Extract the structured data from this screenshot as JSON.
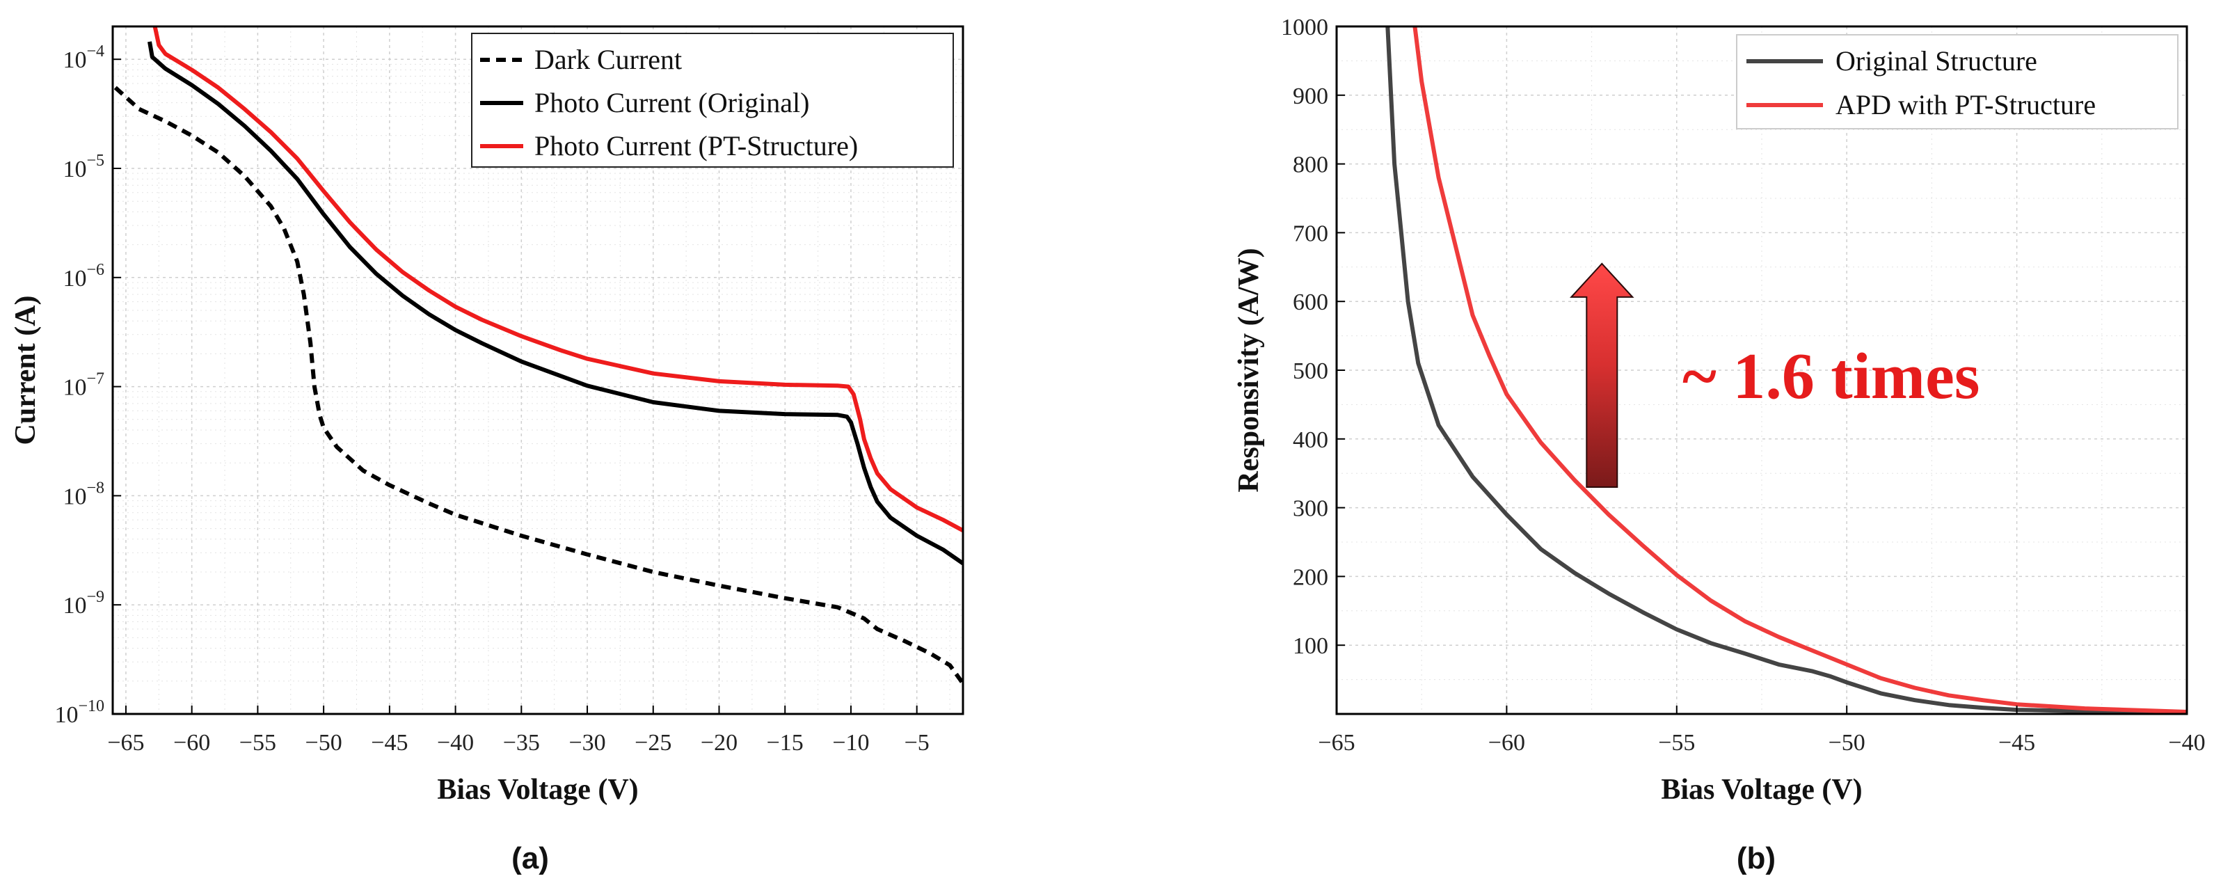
{
  "chart_data": [
    {
      "type": "line",
      "panel_label": "(a)",
      "xlabel": "Bias Voltage (V)",
      "ylabel": "Current (A)",
      "xscale": "linear",
      "yscale": "log",
      "xlim": [
        -66,
        -1.5
      ],
      "ylim": [
        1e-10,
        0.0002
      ],
      "grid": true,
      "legend_position": "top-right",
      "xticks": [
        {
          "value": -65,
          "label": "−65"
        },
        {
          "value": -60,
          "label": "−60"
        },
        {
          "value": -55,
          "label": "−55"
        },
        {
          "value": -50,
          "label": "−50"
        },
        {
          "value": -45,
          "label": "−45"
        },
        {
          "value": -40,
          "label": "−40"
        },
        {
          "value": -35,
          "label": "−35"
        },
        {
          "value": -30,
          "label": "−30"
        },
        {
          "value": -25,
          "label": "−25"
        },
        {
          "value": -20,
          "label": "−20"
        },
        {
          "value": -15,
          "label": "−15"
        },
        {
          "value": -10,
          "label": "−10"
        },
        {
          "value": -5,
          "label": "−5"
        }
      ],
      "yticks": [
        {
          "value": 1e-10,
          "base": "10",
          "exp": "−10"
        },
        {
          "value": 1e-09,
          "base": "10",
          "exp": "−9"
        },
        {
          "value": 1e-08,
          "base": "10",
          "exp": "−8"
        },
        {
          "value": 1e-07,
          "base": "10",
          "exp": "−7"
        },
        {
          "value": 1e-06,
          "base": "10",
          "exp": "−6"
        },
        {
          "value": 1e-05,
          "base": "10",
          "exp": "−5"
        },
        {
          "value": 0.0001,
          "base": "10",
          "exp": "−4"
        }
      ],
      "series": [
        {
          "name": "Dark Current",
          "color": "#000000",
          "dash": "dashed",
          "points": [
            [
              -65.8,
              5.5e-05
            ],
            [
              -64,
              3.5e-05
            ],
            [
              -62,
              2.7e-05
            ],
            [
              -60,
              2e-05
            ],
            [
              -58,
              1.4e-05
            ],
            [
              -56,
              8.5e-06
            ],
            [
              -54,
              4.5e-06
            ],
            [
              -53,
              2.8e-06
            ],
            [
              -52,
              1.4e-06
            ],
            [
              -51.5,
              7e-07
            ],
            [
              -51,
              2.5e-07
            ],
            [
              -50.7,
              1e-07
            ],
            [
              -50.3,
              5.5e-08
            ],
            [
              -50,
              4.2e-08
            ],
            [
              -49,
              2.8e-08
            ],
            [
              -47,
              1.7e-08
            ],
            [
              -45,
              1.25e-08
            ],
            [
              -42,
              8.5e-09
            ],
            [
              -40,
              6.7e-09
            ],
            [
              -35,
              4.3e-09
            ],
            [
              -30,
              2.9e-09
            ],
            [
              -25,
              2e-09
            ],
            [
              -20,
              1.5e-09
            ],
            [
              -15,
              1.15e-09
            ],
            [
              -11,
              9.5e-10
            ],
            [
              -9,
              7.5e-10
            ],
            [
              -8,
              6e-10
            ],
            [
              -6,
              4.7e-10
            ],
            [
              -4,
              3.6e-10
            ],
            [
              -2.5,
              2.8e-10
            ],
            [
              -1.5,
              1.9e-10
            ]
          ]
        },
        {
          "name": "Photo Current (Original)",
          "color": "#000000",
          "dash": "solid",
          "points": [
            [
              -63.2,
              0.000145
            ],
            [
              -63,
              0.000105
            ],
            [
              -62,
              8.2e-05
            ],
            [
              -60,
              5.8e-05
            ],
            [
              -58,
              3.9e-05
            ],
            [
              -56,
              2.45e-05
            ],
            [
              -54,
              1.45e-05
            ],
            [
              -52,
              8e-06
            ],
            [
              -50,
              3.8e-06
            ],
            [
              -48,
              1.9e-06
            ],
            [
              -46,
              1.08e-06
            ],
            [
              -44,
              6.8e-07
            ],
            [
              -42,
              4.6e-07
            ],
            [
              -40,
              3.3e-07
            ],
            [
              -38,
              2.5e-07
            ],
            [
              -35,
              1.7e-07
            ],
            [
              -32,
              1.25e-07
            ],
            [
              -30,
              1.02e-07
            ],
            [
              -25,
              7.2e-08
            ],
            [
              -20,
              6e-08
            ],
            [
              -15,
              5.6e-08
            ],
            [
              -11,
              5.5e-08
            ],
            [
              -10.3,
              5.3e-08
            ],
            [
              -10,
              4.7e-08
            ],
            [
              -9.5,
              3e-08
            ],
            [
              -9,
              1.8e-08
            ],
            [
              -8.5,
              1.2e-08
            ],
            [
              -8,
              8.8e-09
            ],
            [
              -7,
              6.3e-09
            ],
            [
              -5,
              4.3e-09
            ],
            [
              -3,
              3.2e-09
            ],
            [
              -1.5,
              2.4e-09
            ]
          ]
        },
        {
          "name": "Photo Current (PT-Structure)",
          "color": "#ee1c1c",
          "dash": "solid",
          "points": [
            [
              -62.8,
              0.0002
            ],
            [
              -62.5,
              0.000135
            ],
            [
              -62,
              0.000112
            ],
            [
              -60,
              8e-05
            ],
            [
              -58,
              5.5e-05
            ],
            [
              -56,
              3.5e-05
            ],
            [
              -54,
              2.15e-05
            ],
            [
              -52,
              1.23e-05
            ],
            [
              -50,
              6.2e-06
            ],
            [
              -48,
              3.2e-06
            ],
            [
              -46,
              1.8e-06
            ],
            [
              -44,
              1.12e-06
            ],
            [
              -42,
              7.6e-07
            ],
            [
              -40,
              5.4e-07
            ],
            [
              -38,
              4.1e-07
            ],
            [
              -35,
              2.9e-07
            ],
            [
              -32,
              2.15e-07
            ],
            [
              -30,
              1.8e-07
            ],
            [
              -25,
              1.32e-07
            ],
            [
              -20,
              1.12e-07
            ],
            [
              -15,
              1.04e-07
            ],
            [
              -11,
              1.02e-07
            ],
            [
              -10.2,
              1e-07
            ],
            [
              -9.8,
              8.5e-08
            ],
            [
              -9.3,
              5e-08
            ],
            [
              -9,
              3.3e-08
            ],
            [
              -8.5,
              2.2e-08
            ],
            [
              -8,
              1.6e-08
            ],
            [
              -7,
              1.15e-08
            ],
            [
              -5,
              7.8e-09
            ],
            [
              -3,
              6e-09
            ],
            [
              -1.5,
              4.8e-09
            ]
          ]
        }
      ]
    },
    {
      "type": "line",
      "panel_label": "(b)",
      "xlabel": "Bias Voltage (V)",
      "ylabel": "Responsivity (A/W)",
      "xscale": "linear",
      "yscale": "linear",
      "xlim": [
        -65,
        -40
      ],
      "ylim": [
        0,
        1000
      ],
      "grid": true,
      "legend_position": "top-right",
      "xticks": [
        {
          "value": -65,
          "label": "−65"
        },
        {
          "value": -60,
          "label": "−60"
        },
        {
          "value": -55,
          "label": "−55"
        },
        {
          "value": -50,
          "label": "−50"
        },
        {
          "value": -45,
          "label": "−45"
        },
        {
          "value": -40,
          "label": "−40"
        }
      ],
      "yticks": [
        {
          "value": 100,
          "label": "100"
        },
        {
          "value": 200,
          "label": "200"
        },
        {
          "value": 300,
          "label": "300"
        },
        {
          "value": 400,
          "label": "400"
        },
        {
          "value": 500,
          "label": "500"
        },
        {
          "value": 600,
          "label": "600"
        },
        {
          "value": 700,
          "label": "700"
        },
        {
          "value": 800,
          "label": "800"
        },
        {
          "value": 900,
          "label": "900"
        },
        {
          "value": 1000,
          "label": "1000"
        }
      ],
      "series": [
        {
          "name": "Original Structure",
          "color": "#444444",
          "dash": "solid",
          "points": [
            [
              -63.5,
              1000
            ],
            [
              -63.4,
              900
            ],
            [
              -63.3,
              800
            ],
            [
              -63.1,
              700
            ],
            [
              -62.9,
              600
            ],
            [
              -62.6,
              510
            ],
            [
              -62,
              420
            ],
            [
              -61,
              345
            ],
            [
              -60,
              290
            ],
            [
              -59,
              240
            ],
            [
              -58,
              205
            ],
            [
              -57,
              175
            ],
            [
              -56,
              148
            ],
            [
              -55,
              123
            ],
            [
              -54,
              103
            ],
            [
              -53,
              88
            ],
            [
              -52,
              72
            ],
            [
              -51,
              62
            ],
            [
              -50.5,
              55
            ],
            [
              -50,
              46
            ],
            [
              -49,
              30
            ],
            [
              -48,
              20
            ],
            [
              -47,
              13
            ],
            [
              -46,
              9
            ],
            [
              -45,
              6
            ],
            [
              -43,
              4
            ],
            [
              -40,
              2
            ]
          ]
        },
        {
          "name": "APD with PT-Structure",
          "color": "#ef3b3b",
          "dash": "solid",
          "points": [
            [
              -62.7,
              1000
            ],
            [
              -62.5,
              920
            ],
            [
              -62,
              780
            ],
            [
              -61.5,
              680
            ],
            [
              -61,
              580
            ],
            [
              -60.5,
              520
            ],
            [
              -60,
              465
            ],
            [
              -59,
              395
            ],
            [
              -58,
              340
            ],
            [
              -57,
              290
            ],
            [
              -56,
              245
            ],
            [
              -55,
              202
            ],
            [
              -54,
              165
            ],
            [
              -53,
              135
            ],
            [
              -52,
              112
            ],
            [
              -51,
              92
            ],
            [
              -50.5,
              82
            ],
            [
              -50,
              72
            ],
            [
              -49,
              52
            ],
            [
              -48,
              38
            ],
            [
              -47,
              27
            ],
            [
              -46,
              20
            ],
            [
              -45,
              14
            ],
            [
              -43,
              8
            ],
            [
              -40,
              3
            ]
          ]
        }
      ],
      "annotation": {
        "text": "~ 1.6 times",
        "color": "#e61c1c",
        "arrow_from_value": 330,
        "arrow_to_value": 655,
        "arrow_at_x": -57.2
      }
    }
  ]
}
